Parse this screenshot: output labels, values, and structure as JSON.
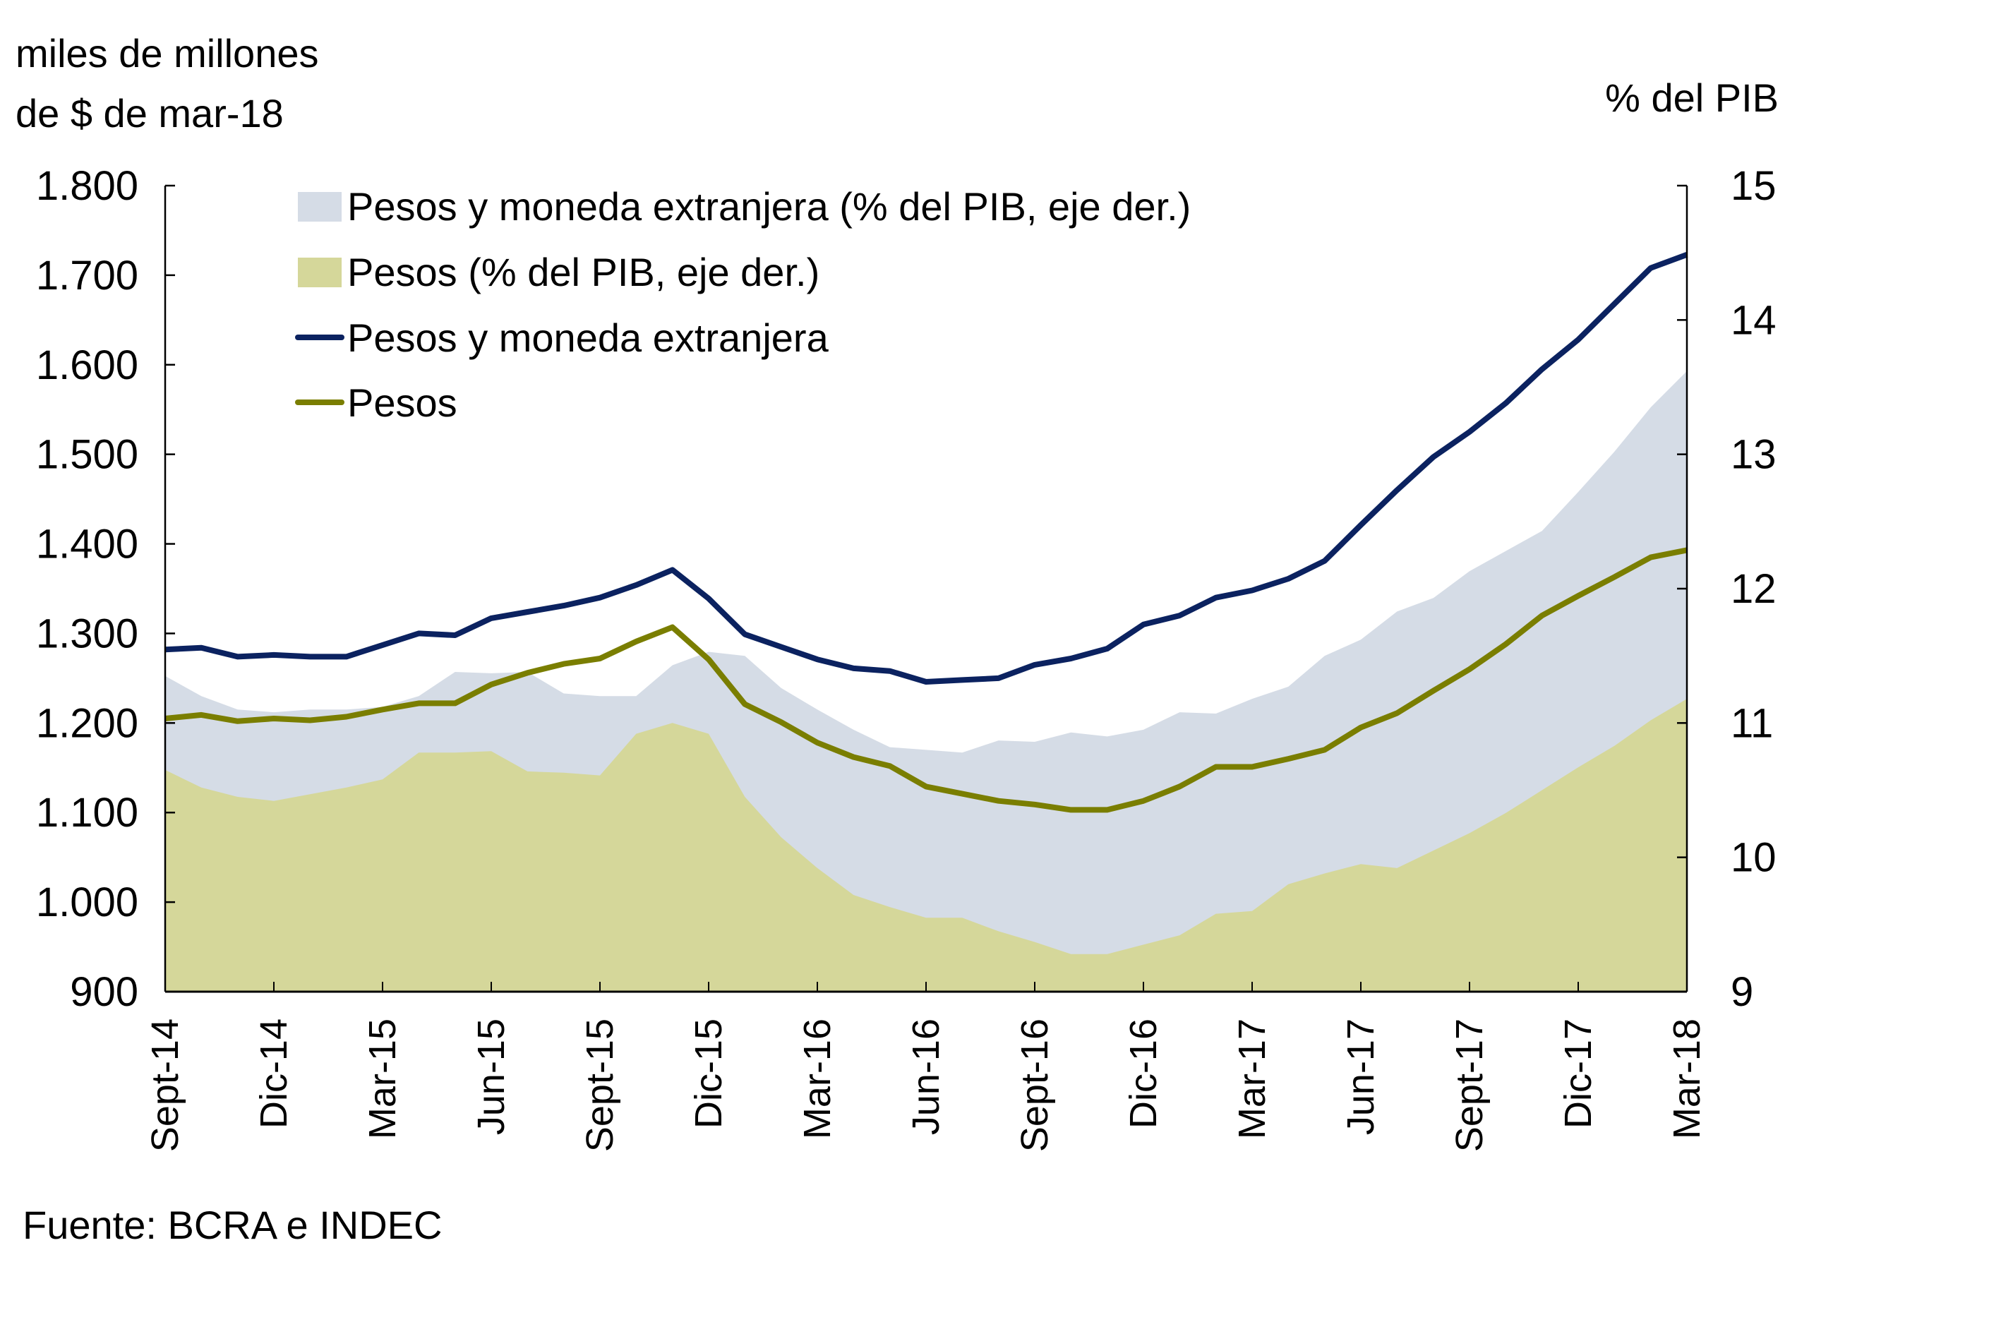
{
  "chart_data": {
    "type": "line",
    "title": "",
    "left_axis_title_lines": [
      "miles de millones",
      "de $ de mar-18"
    ],
    "right_axis_title": "% del PIB",
    "source": "Fuente: BCRA e INDEC",
    "left_axis": {
      "min": 900,
      "max": 1800,
      "step": 100,
      "tick_labels": [
        "900",
        "1.000",
        "1.100",
        "1.200",
        "1.300",
        "1.400",
        "1.500",
        "1.600",
        "1.700",
        "1.800"
      ]
    },
    "right_axis": {
      "min": 9,
      "max": 15,
      "step": 1,
      "tick_labels": [
        "9",
        "10",
        "11",
        "12",
        "13",
        "14",
        "15"
      ]
    },
    "x_tick_labels": [
      "Sept-14",
      "Dic-14",
      "Mar-15",
      "Jun-15",
      "Sept-15",
      "Dic-15",
      "Mar-16",
      "Jun-16",
      "Sept-16",
      "Dic-16",
      "Mar-17",
      "Jun-17",
      "Sept-17",
      "Dic-17",
      "Mar-18"
    ],
    "x_tick_every_n_points": 3,
    "num_points": 43,
    "grid": false,
    "legend_position": "top-left",
    "legend": [
      {
        "label": "Pesos y moneda extranjera (% del PIB, eje der.)",
        "kind": "area",
        "color": "#d5dce6"
      },
      {
        "label": "Pesos (% del PIB, eje der.)",
        "kind": "area",
        "color": "#d5d79a"
      },
      {
        "label": "Pesos y moneda extranjera",
        "kind": "line",
        "color": "#0b2260"
      },
      {
        "label": "Pesos",
        "kind": "line",
        "color": "#7a7e00"
      }
    ],
    "series": [
      {
        "name": "Pesos y moneda extranjera (% del PIB, eje der.)",
        "axis": "right",
        "kind": "area",
        "color": "#d5dce6",
        "values": [
          11.35,
          11.2,
          11.1,
          11.08,
          11.1,
          11.1,
          11.12,
          11.2,
          11.38,
          11.37,
          11.38,
          11.22,
          11.2,
          11.2,
          11.43,
          11.53,
          11.5,
          11.26,
          11.1,
          10.95,
          10.82,
          10.8,
          10.78,
          10.87,
          10.86,
          10.93,
          10.9,
          10.95,
          11.08,
          11.07,
          11.18,
          11.27,
          11.5,
          11.62,
          11.83,
          11.93,
          12.13,
          12.28,
          12.43,
          12.72,
          13.02,
          13.35,
          13.62
        ]
      },
      {
        "name": "Pesos (% del PIB, eje der.)",
        "axis": "right",
        "kind": "area",
        "color": "#d5d79a",
        "values": [
          10.65,
          10.52,
          10.45,
          10.42,
          10.47,
          10.52,
          10.58,
          10.78,
          10.78,
          10.79,
          10.64,
          10.63,
          10.61,
          10.92,
          11.0,
          10.92,
          10.45,
          10.15,
          9.92,
          9.72,
          9.63,
          9.55,
          9.55,
          9.45,
          9.37,
          9.28,
          9.28,
          9.35,
          9.42,
          9.58,
          9.6,
          9.8,
          9.88,
          9.95,
          9.92,
          10.05,
          10.18,
          10.33,
          10.5,
          10.67,
          10.83,
          11.02,
          11.18
        ]
      },
      {
        "name": "Pesos y moneda extranjera",
        "axis": "left",
        "kind": "line",
        "color": "#0b2260",
        "values": [
          1282,
          1284,
          1274,
          1276,
          1274,
          1274,
          1287,
          1300,
          1298,
          1317,
          1324,
          1331,
          1340,
          1354,
          1371,
          1339,
          1299,
          1285,
          1271,
          1261,
          1258,
          1246,
          1248,
          1250,
          1265,
          1272,
          1283,
          1310,
          1320,
          1340,
          1348,
          1361,
          1381,
          1421,
          1460,
          1497,
          1525,
          1557,
          1595,
          1628,
          1668,
          1708,
          1723
        ]
      },
      {
        "name": "Pesos",
        "axis": "left",
        "kind": "line",
        "color": "#7a7e00",
        "values": [
          1205,
          1209,
          1202,
          1205,
          1203,
          1207,
          1215,
          1222,
          1222,
          1243,
          1256,
          1266,
          1272,
          1291,
          1307,
          1271,
          1221,
          1201,
          1178,
          1162,
          1152,
          1129,
          1121,
          1113,
          1109,
          1103,
          1103,
          1113,
          1129,
          1151,
          1151,
          1160,
          1170,
          1195,
          1211,
          1236,
          1260,
          1288,
          1320,
          1342,
          1363,
          1385,
          1393
        ]
      }
    ]
  }
}
